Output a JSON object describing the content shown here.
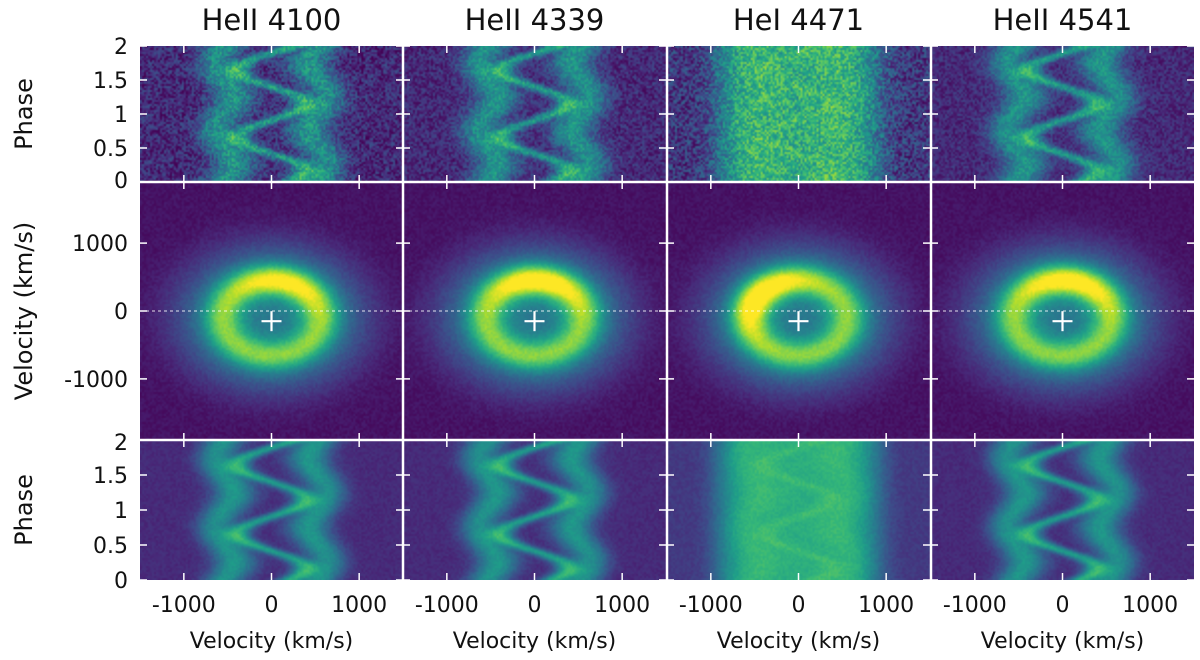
{
  "chart_data": {
    "type": "heatmap",
    "title": "",
    "columns": [
      {
        "label": "HeII 4100",
        "ring_peak_angle_deg": 75,
        "ring_contrast": 0.55,
        "noise": 0.45
      },
      {
        "label": "HeII 4339",
        "ring_peak_angle_deg": 85,
        "ring_contrast": 0.7,
        "noise": 0.35
      },
      {
        "label": "HeI 4471",
        "ring_peak_angle_deg": 140,
        "ring_contrast": 0.75,
        "noise": 0.55
      },
      {
        "label": "HeII 4541",
        "ring_peak_angle_deg": 80,
        "ring_contrast": 0.65,
        "noise": 0.3
      }
    ],
    "rows": [
      {
        "name": "observed-trailed-spectra",
        "ylabel": "Phase",
        "ylim": [
          0,
          2
        ],
        "yticks": [
          "0",
          "0.5",
          "1",
          "1.5",
          "2"
        ]
      },
      {
        "name": "doppler-maps",
        "ylabel": "Velocity (km/s)",
        "ylim": [
          -1900,
          1900
        ],
        "yticks": [
          "-1000",
          "0",
          "1000"
        ]
      },
      {
        "name": "reconstructed-trailed-spectra",
        "ylabel": "Phase",
        "ylim": [
          0,
          2
        ],
        "yticks": [
          "0",
          "0.5",
          "1",
          "1.5",
          "2"
        ]
      }
    ],
    "xlabel": "Velocity (km/s)",
    "xlim": [
      -1500,
      1500
    ],
    "xticks": [
      "-1000",
      "0",
      "1000"
    ],
    "center_marker": {
      "vx": 0,
      "vy": -150
    },
    "reference_line_vy": 0,
    "colormap": "viridis",
    "colors": {
      "low": "#440154",
      "mid": "#21918c",
      "high": "#fde725",
      "marker": "#ffffff"
    }
  }
}
